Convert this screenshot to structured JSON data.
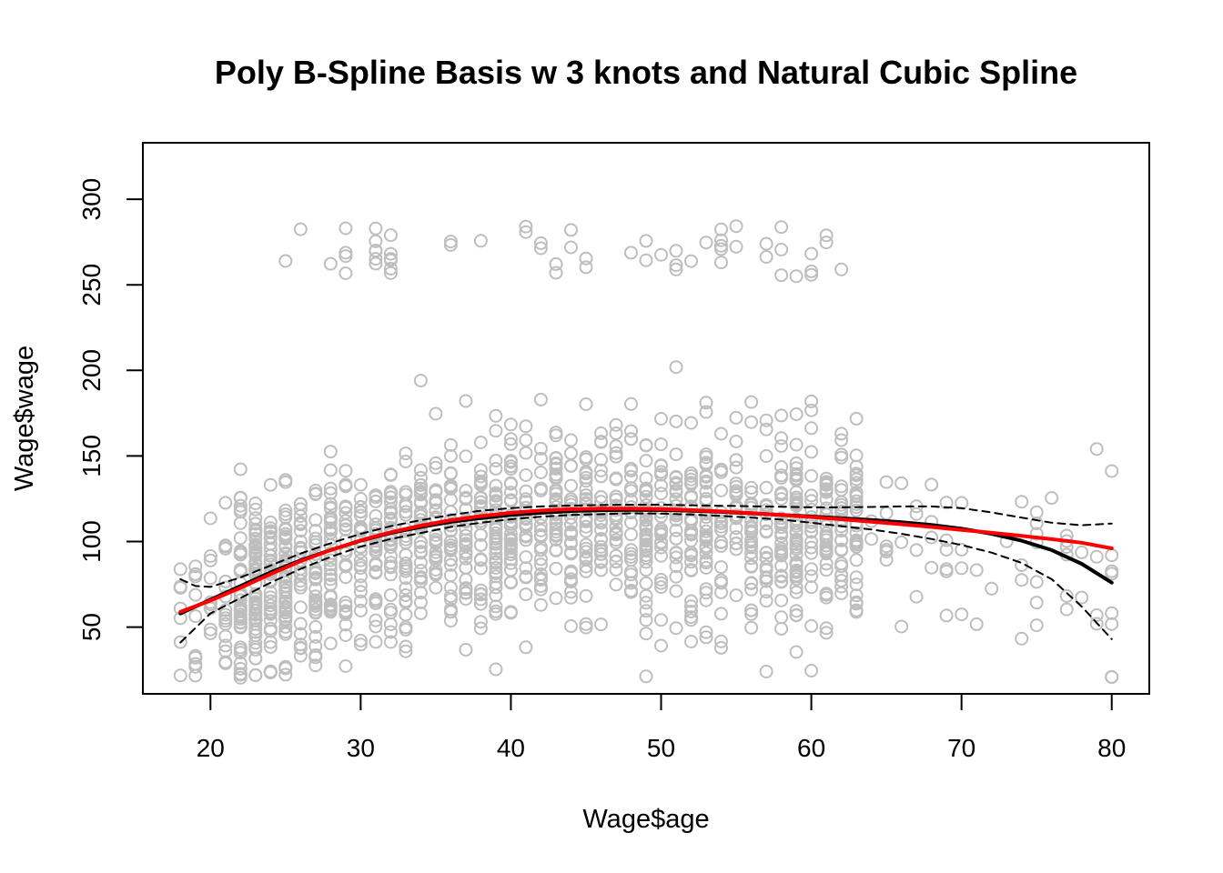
{
  "chart_data": {
    "type": "scatter",
    "title": "Poly B-Spline Basis w 3 knots and Natural Cubic Spline",
    "xlabel": "Wage$age",
    "ylabel": "Wage$wage",
    "xlim": [
      15.5,
      82.5
    ],
    "ylim": [
      11,
      333
    ],
    "x_ticks": [
      20,
      30,
      40,
      50,
      60,
      70,
      80
    ],
    "y_ticks": [
      50,
      100,
      150,
      200,
      250,
      300
    ],
    "grid": false,
    "legend": "none",
    "colors": {
      "points": "#bebebe",
      "bspline_fit": "#000000",
      "confidence_band": "#000000",
      "natural_spline_fit": "#ff0000"
    },
    "points": {
      "x_range": [
        18,
        80
      ],
      "main_band": [
        55,
        160
      ],
      "high_band": [
        255,
        285
      ],
      "count_shown": 1500
    },
    "series": [
      {
        "role": "bspline_fit",
        "style": "solid",
        "x": [
          18,
          20,
          22,
          24,
          26,
          28,
          30,
          32,
          34,
          36,
          38,
          40,
          42,
          44,
          46,
          48,
          50,
          52,
          54,
          56,
          58,
          60,
          62,
          64,
          66,
          68,
          70,
          72,
          74,
          76,
          78,
          80
        ],
        "y": [
          58,
          66,
          74,
          82,
          89,
          95,
          100.5,
          105,
          108.5,
          111.5,
          113.7,
          115.5,
          116.8,
          117.8,
          118.3,
          118.5,
          118.4,
          118,
          117.3,
          116.5,
          115.5,
          114.6,
          113.6,
          112.6,
          111.3,
          109.7,
          107.5,
          104.5,
          100.5,
          95,
          87,
          76
        ]
      },
      {
        "role": "confidence_upper",
        "style": "dashed",
        "x": [
          18,
          19,
          20,
          22,
          24,
          26,
          28,
          30,
          32,
          34,
          36,
          38,
          40,
          42,
          44,
          46,
          48,
          50,
          52,
          54,
          56,
          58,
          60,
          62,
          64,
          66,
          68,
          70,
          72,
          74,
          76,
          78,
          80
        ],
        "y": [
          78,
          74,
          73.5,
          79,
          86,
          93,
          99,
          104.5,
          109,
          112.5,
          115.5,
          118,
          119.5,
          120.5,
          121,
          121.3,
          121.5,
          121.5,
          121.2,
          120.9,
          120.6,
          120.3,
          120,
          120,
          120.2,
          120.5,
          120.5,
          119.5,
          117,
          114,
          111,
          109.5,
          110.5
        ]
      },
      {
        "role": "confidence_lower",
        "style": "dashed",
        "x": [
          18,
          20,
          22,
          24,
          26,
          28,
          30,
          32,
          34,
          36,
          38,
          40,
          42,
          44,
          46,
          48,
          50,
          52,
          54,
          56,
          58,
          60,
          62,
          64,
          66,
          68,
          70,
          72,
          74,
          76,
          78,
          80
        ],
        "y": [
          41,
          58,
          67,
          76,
          84,
          91,
          97,
          101.5,
          105,
          108.5,
          111,
          113,
          114.5,
          115.5,
          116,
          116.5,
          116.3,
          115.8,
          115,
          114,
          112.8,
          111,
          109,
          107,
          104.5,
          101.5,
          98,
          93.5,
          87.5,
          78,
          62,
          43
        ]
      },
      {
        "role": "natural_spline_fit",
        "style": "solid",
        "x": [
          18,
          20,
          22,
          24,
          26,
          28,
          30,
          32,
          34,
          36,
          38,
          40,
          42,
          44,
          46,
          48,
          50,
          52,
          54,
          56,
          58,
          60,
          62,
          64,
          66,
          68,
          70,
          72,
          74,
          76,
          78,
          80
        ],
        "y": [
          59,
          65.5,
          73,
          81,
          88.5,
          95,
          100.7,
          105.4,
          109.3,
          112.5,
          114.9,
          116.8,
          118.1,
          118.9,
          119.3,
          119.3,
          119,
          118.4,
          117.6,
          116.6,
          115.5,
          114.3,
          113,
          111.6,
          110.1,
          108.5,
          106.8,
          105.1,
          103.3,
          101.4,
          99.3,
          96
        ]
      }
    ]
  }
}
